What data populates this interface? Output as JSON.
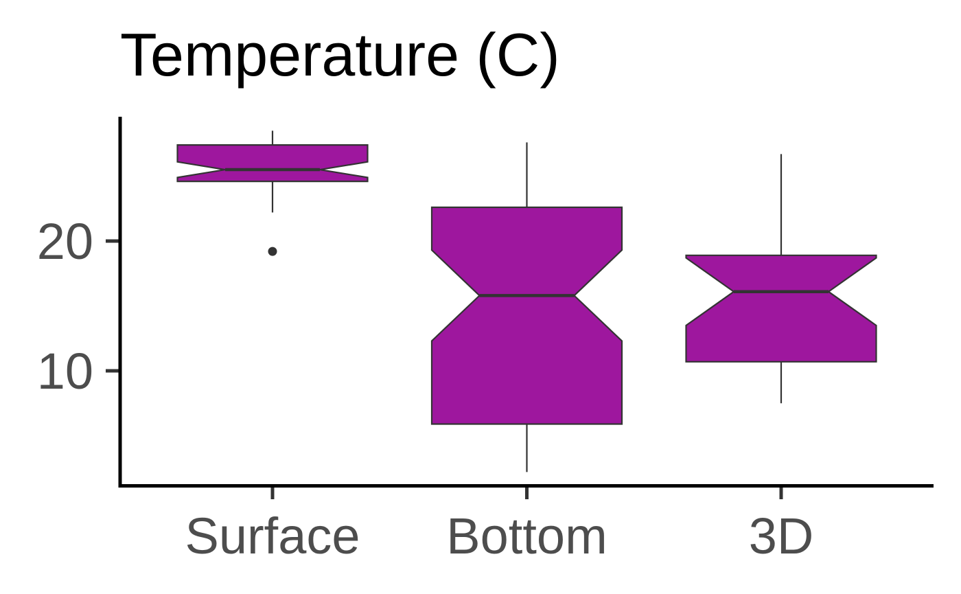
{
  "chart_data": {
    "type": "boxplot",
    "title": "Temperature (C)",
    "xlabel": "",
    "ylabel": "",
    "categories": [
      "Surface",
      "Bottom",
      "3D"
    ],
    "y_ticks": [
      10,
      20
    ],
    "ylim": [
      1,
      30
    ],
    "notched": true,
    "fill_color": "#9E179E",
    "grid": false,
    "legend": "none",
    "boxes": [
      {
        "category": "Surface",
        "whisker_low": 22.2,
        "q1": 24.6,
        "median": 25.5,
        "q3": 27.4,
        "whisker_high": 28.5,
        "notch_low": 24.9,
        "notch_high": 26.1,
        "outliers": [
          19.2
        ]
      },
      {
        "category": "Bottom",
        "whisker_low": 2.2,
        "q1": 5.9,
        "median": 15.8,
        "q3": 22.6,
        "whisker_high": 27.6,
        "notch_low": 12.3,
        "notch_high": 19.3,
        "outliers": []
      },
      {
        "category": "3D",
        "whisker_low": 7.5,
        "q1": 10.7,
        "median": 16.1,
        "q3": 18.9,
        "whisker_high": 26.7,
        "notch_low": 13.5,
        "notch_high": 18.7,
        "outliers": []
      }
    ]
  }
}
